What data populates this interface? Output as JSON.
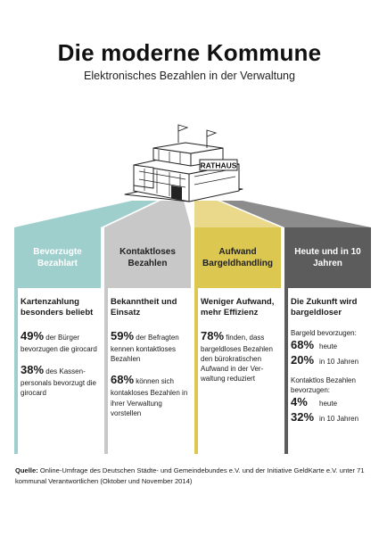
{
  "header": {
    "title": "Die moderne Kommune",
    "subtitle": "Elektronisches Bezahlen in der Verwaltung"
  },
  "building": {
    "sign": "RATHAUS"
  },
  "colors": {
    "teal": "#9fcfcd",
    "light_gray": "#c8c8c8",
    "yellow": "#dcc750",
    "dark_gray": "#5c5c5c"
  },
  "categories": [
    {
      "label": "Bevorzugte Bezahlart"
    },
    {
      "label": "Kontaktloses Bezahlen"
    },
    {
      "label": "Aufwand Bargeldhandling"
    },
    {
      "label": "Heute und in 10 Jahren"
    }
  ],
  "columns": [
    {
      "heading": "Kartenzahlung besonders beliebt",
      "stats": [
        {
          "value": "49%",
          "text": "der Bürger bevorzugen die girocard"
        },
        {
          "value": "38%",
          "text": "des Kassen-personals bevorzugt die girocard"
        }
      ]
    },
    {
      "heading": "Bekanntheit und Einsatz",
      "stats": [
        {
          "value": "59%",
          "text": "der Befragten kennen kontaktloses Bezahlen"
        },
        {
          "value": "68%",
          "text": "können sich kontakloses Bezahlen in ihrer Verwaltung vorstellen"
        }
      ]
    },
    {
      "heading": "Weniger Aufwand, mehr Effizienz",
      "stats": [
        {
          "value": "78%",
          "text": "finden, dass bargeldloses Bezahlen den bürokratischen Aufwand in der Ver-waltung reduziert"
        }
      ]
    },
    {
      "heading": "Die Zukunft wird bargeldloser",
      "group1_label": "Bargeld bevorzugen:",
      "group1": [
        {
          "value": "68%",
          "text": "heute"
        },
        {
          "value": "20%",
          "text": "in 10 Jahren"
        }
      ],
      "group2_label": "Kontaktlos Bezahlen bevorzugen:",
      "group2": [
        {
          "value": "4%",
          "text": "heute"
        },
        {
          "value": "32%",
          "text": "in 10 Jahren"
        }
      ]
    }
  ],
  "source": {
    "label": "Quelle:",
    "text": "Online-Umfrage des Deutschen Städte- und Gemeindebundes e.V. und der Initiative GeldKarte e.V. unter 71 kommunal Verantwortlichen (Oktober und November 2014)"
  }
}
